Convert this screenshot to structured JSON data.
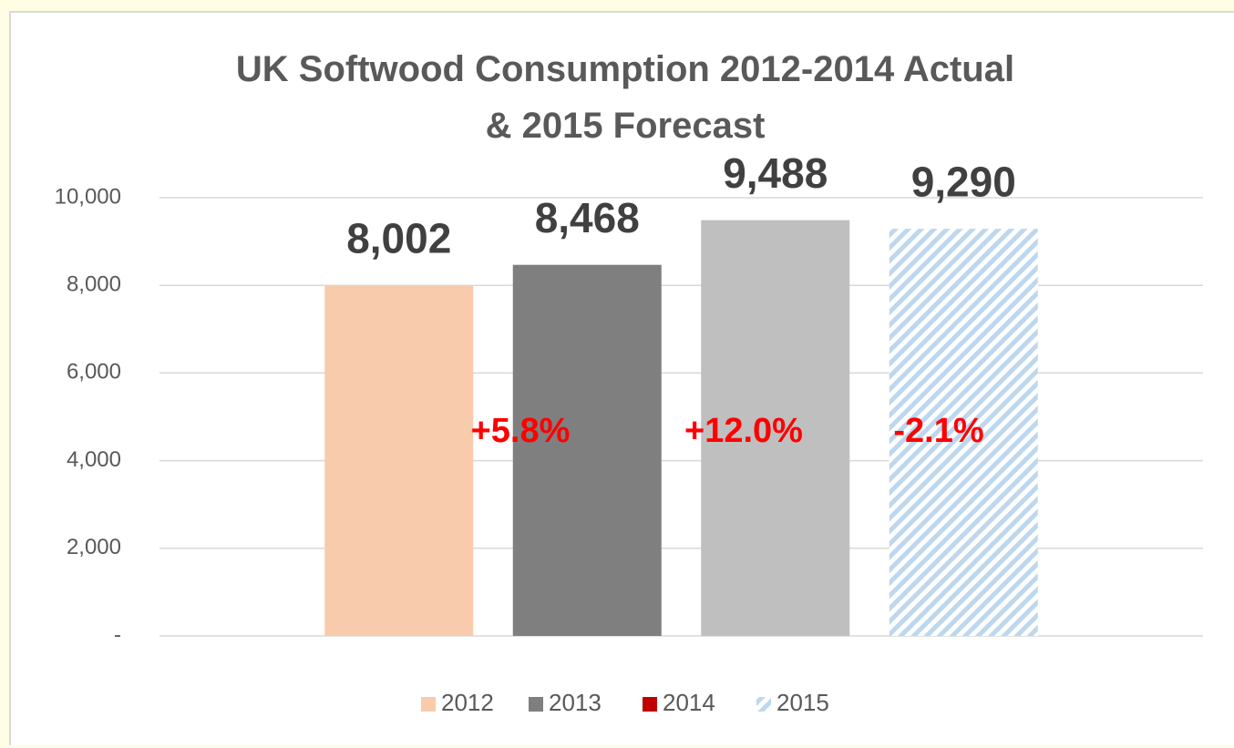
{
  "chart_data": {
    "type": "bar",
    "title": "UK Softwood Consumption 2012-2014 Actual & 2015 Forecast",
    "series": [
      {
        "name": "2012",
        "color": "#f8cbad",
        "values": [
          8002
        ],
        "value_labels": [
          "8,002"
        ]
      },
      {
        "name": "2013",
        "color": "#7f7f7f",
        "values": [
          8468
        ],
        "value_labels": [
          "8,468"
        ]
      },
      {
        "name": "2014",
        "color": "#bfbfbf",
        "legend_color": "#c00000",
        "values": [
          9488
        ],
        "value_labels": [
          "9,488"
        ]
      },
      {
        "name": "2015",
        "color": "#bdd7ee",
        "hatch": true,
        "values": [
          9290
        ],
        "value_labels": [
          "9,290"
        ]
      }
    ],
    "annotations": [
      "+5.8%",
      "+12.0%",
      "-2.1%"
    ],
    "annotation_color": "#ff0000",
    "ylim": [
      0,
      10000
    ],
    "yticks": [
      {
        "value": 0,
        "label": "-"
      },
      {
        "value": 2000,
        "label": "2,000"
      },
      {
        "value": 4000,
        "label": "4,000"
      },
      {
        "value": 6000,
        "label": "6,000"
      },
      {
        "value": 8000,
        "label": "8,000"
      },
      {
        "value": 10000,
        "label": "10,000"
      }
    ],
    "grid": true,
    "legend": "bottom"
  }
}
